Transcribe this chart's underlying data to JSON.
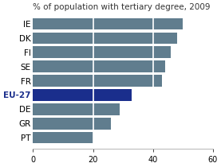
{
  "title": "% of population with tertiary degree, 2009",
  "categories": [
    "PT",
    "GR",
    "DE",
    "EU-27",
    "FR",
    "SE",
    "FI",
    "DK",
    "IE"
  ],
  "values": [
    20,
    26,
    29,
    33,
    43,
    44,
    46,
    48,
    50
  ],
  "bar_colors": [
    "#607d8e",
    "#607d8e",
    "#607d8e",
    "#1a2e8c",
    "#607d8e",
    "#607d8e",
    "#607d8e",
    "#607d8e",
    "#607d8e"
  ],
  "xlim": [
    0,
    60
  ],
  "xticks": [
    0,
    20,
    40,
    60
  ],
  "background_color": "#ffffff",
  "title_fontsize": 7.5,
  "tick_fontsize": 7,
  "label_fontsize": 7.5,
  "bar_height": 0.82,
  "grid_color": "#ffffff",
  "grid_linewidth": 1.2,
  "spine_color": "#aaaaaa"
}
